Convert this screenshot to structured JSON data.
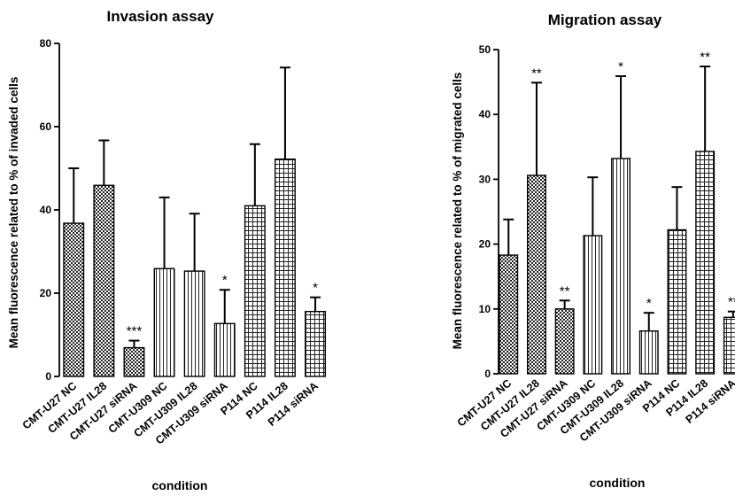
{
  "chart_data": [
    {
      "type": "bar",
      "title": "Invasion assay",
      "xlabel": "condition",
      "ylabel": "Mean fluorescence related to % of invaded cells",
      "ylim": [
        0,
        80
      ],
      "yticks": [
        "0",
        "20",
        "40",
        "60",
        "80"
      ],
      "categories": [
        "CMT-U27 NC",
        "CMT-U27 IL28",
        "CMT-U27 siRNA",
        "CMT-U309 NC",
        "CMT-U309 IL28",
        "CMT-U309 siRNA",
        "P114 NC",
        "P114 IL28",
        "P114 siRNA"
      ],
      "values": [
        36.8,
        45.9,
        6.9,
        25.9,
        25.3,
        12.7,
        41.0,
        52.2,
        15.6
      ],
      "error": [
        13.2,
        10.8,
        1.7,
        17.1,
        13.8,
        8.1,
        14.8,
        22.0,
        3.4
      ],
      "annotations": [
        "",
        "",
        "***",
        "",
        "",
        "*",
        "",
        "",
        "*"
      ],
      "patterns": [
        "checker",
        "checker",
        "checker",
        "vlines",
        "vlines",
        "vlines",
        "grid",
        "grid",
        "grid"
      ],
      "grid": false,
      "legend": "none"
    },
    {
      "type": "bar",
      "title": "Migration assay",
      "xlabel": "condition",
      "ylabel": "Mean fluorescence related to % of migrated cells",
      "ylim": [
        0,
        50
      ],
      "yticks": [
        "0",
        "10",
        "20",
        "30",
        "40",
        "50"
      ],
      "categories": [
        "CMT-U27 NC",
        "CMT-U27 IL28",
        "CMT-U27 siRNA",
        "CMT-U309 NC",
        "CMT-U309 IL28",
        "CMT-U309 siRNA",
        "P114 NC",
        "P114 IL28",
        "P114 siRNA"
      ],
      "values": [
        18.3,
        30.6,
        10.0,
        21.3,
        33.2,
        6.6,
        22.2,
        34.3,
        8.7
      ],
      "error": [
        5.5,
        14.3,
        1.3,
        9.0,
        12.7,
        2.8,
        6.6,
        13.1,
        0.9
      ],
      "annotations": [
        "",
        "**",
        "**",
        "",
        "*",
        "*",
        "",
        "**",
        "**"
      ],
      "patterns": [
        "checker",
        "checker",
        "checker",
        "vlines",
        "vlines",
        "vlines",
        "grid",
        "grid",
        "grid"
      ],
      "grid": false,
      "legend": "none"
    }
  ]
}
